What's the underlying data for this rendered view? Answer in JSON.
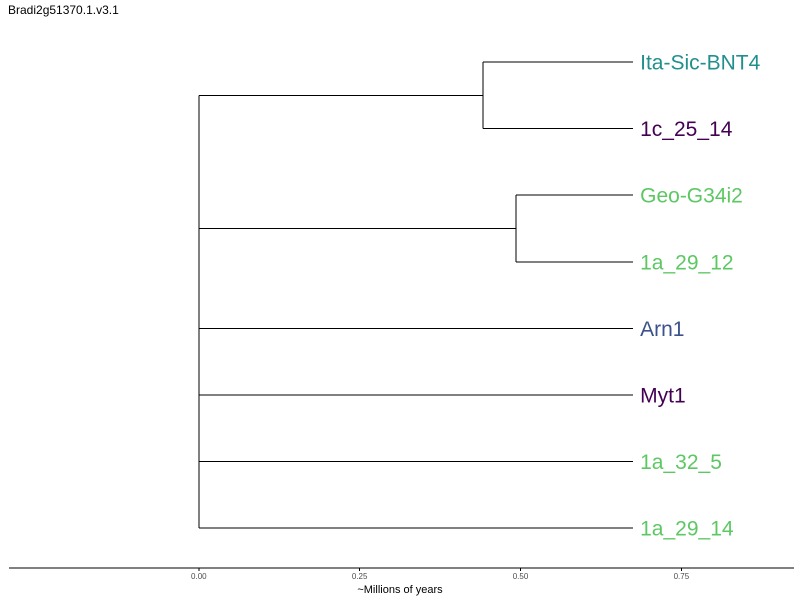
{
  "title": "Bradi2g51370.1.v3.1",
  "chart_data": {
    "type": "dendrogram",
    "title": "Bradi2g51370.1.v3.1",
    "xlabel": "~Millions of years",
    "xlim": [
      -0.295,
      0.925
    ],
    "ticks": [
      {
        "value": 0.0,
        "label": "0.00"
      },
      {
        "value": 0.25,
        "label": "0.25"
      },
      {
        "value": 0.5,
        "label": "0.50"
      },
      {
        "value": 0.75,
        "label": "0.75"
      }
    ],
    "tips": [
      {
        "name": "Ita-Sic-BNT4",
        "color": "#21908d"
      },
      {
        "name": "1c_25_14",
        "color": "#440154"
      },
      {
        "name": "Geo-G34i2",
        "color": "#5dc863"
      },
      {
        "name": "1a_29_12",
        "color": "#5dc863"
      },
      {
        "name": "Arn1",
        "color": "#3b528b"
      },
      {
        "name": "Myt1",
        "color": "#440154"
      },
      {
        "name": "1a_32_5",
        "color": "#5dc863"
      },
      {
        "name": "1a_29_14",
        "color": "#5dc863"
      }
    ],
    "tip_depth": 0.675,
    "clades": [
      {
        "members": [
          "Ita-Sic-BNT4",
          "1c_25_14"
        ],
        "node_x": 0.442
      },
      {
        "members": [
          "Geo-G34i2",
          "1a_29_12"
        ],
        "node_x": 0.493
      }
    ],
    "root_x": 0.0
  }
}
